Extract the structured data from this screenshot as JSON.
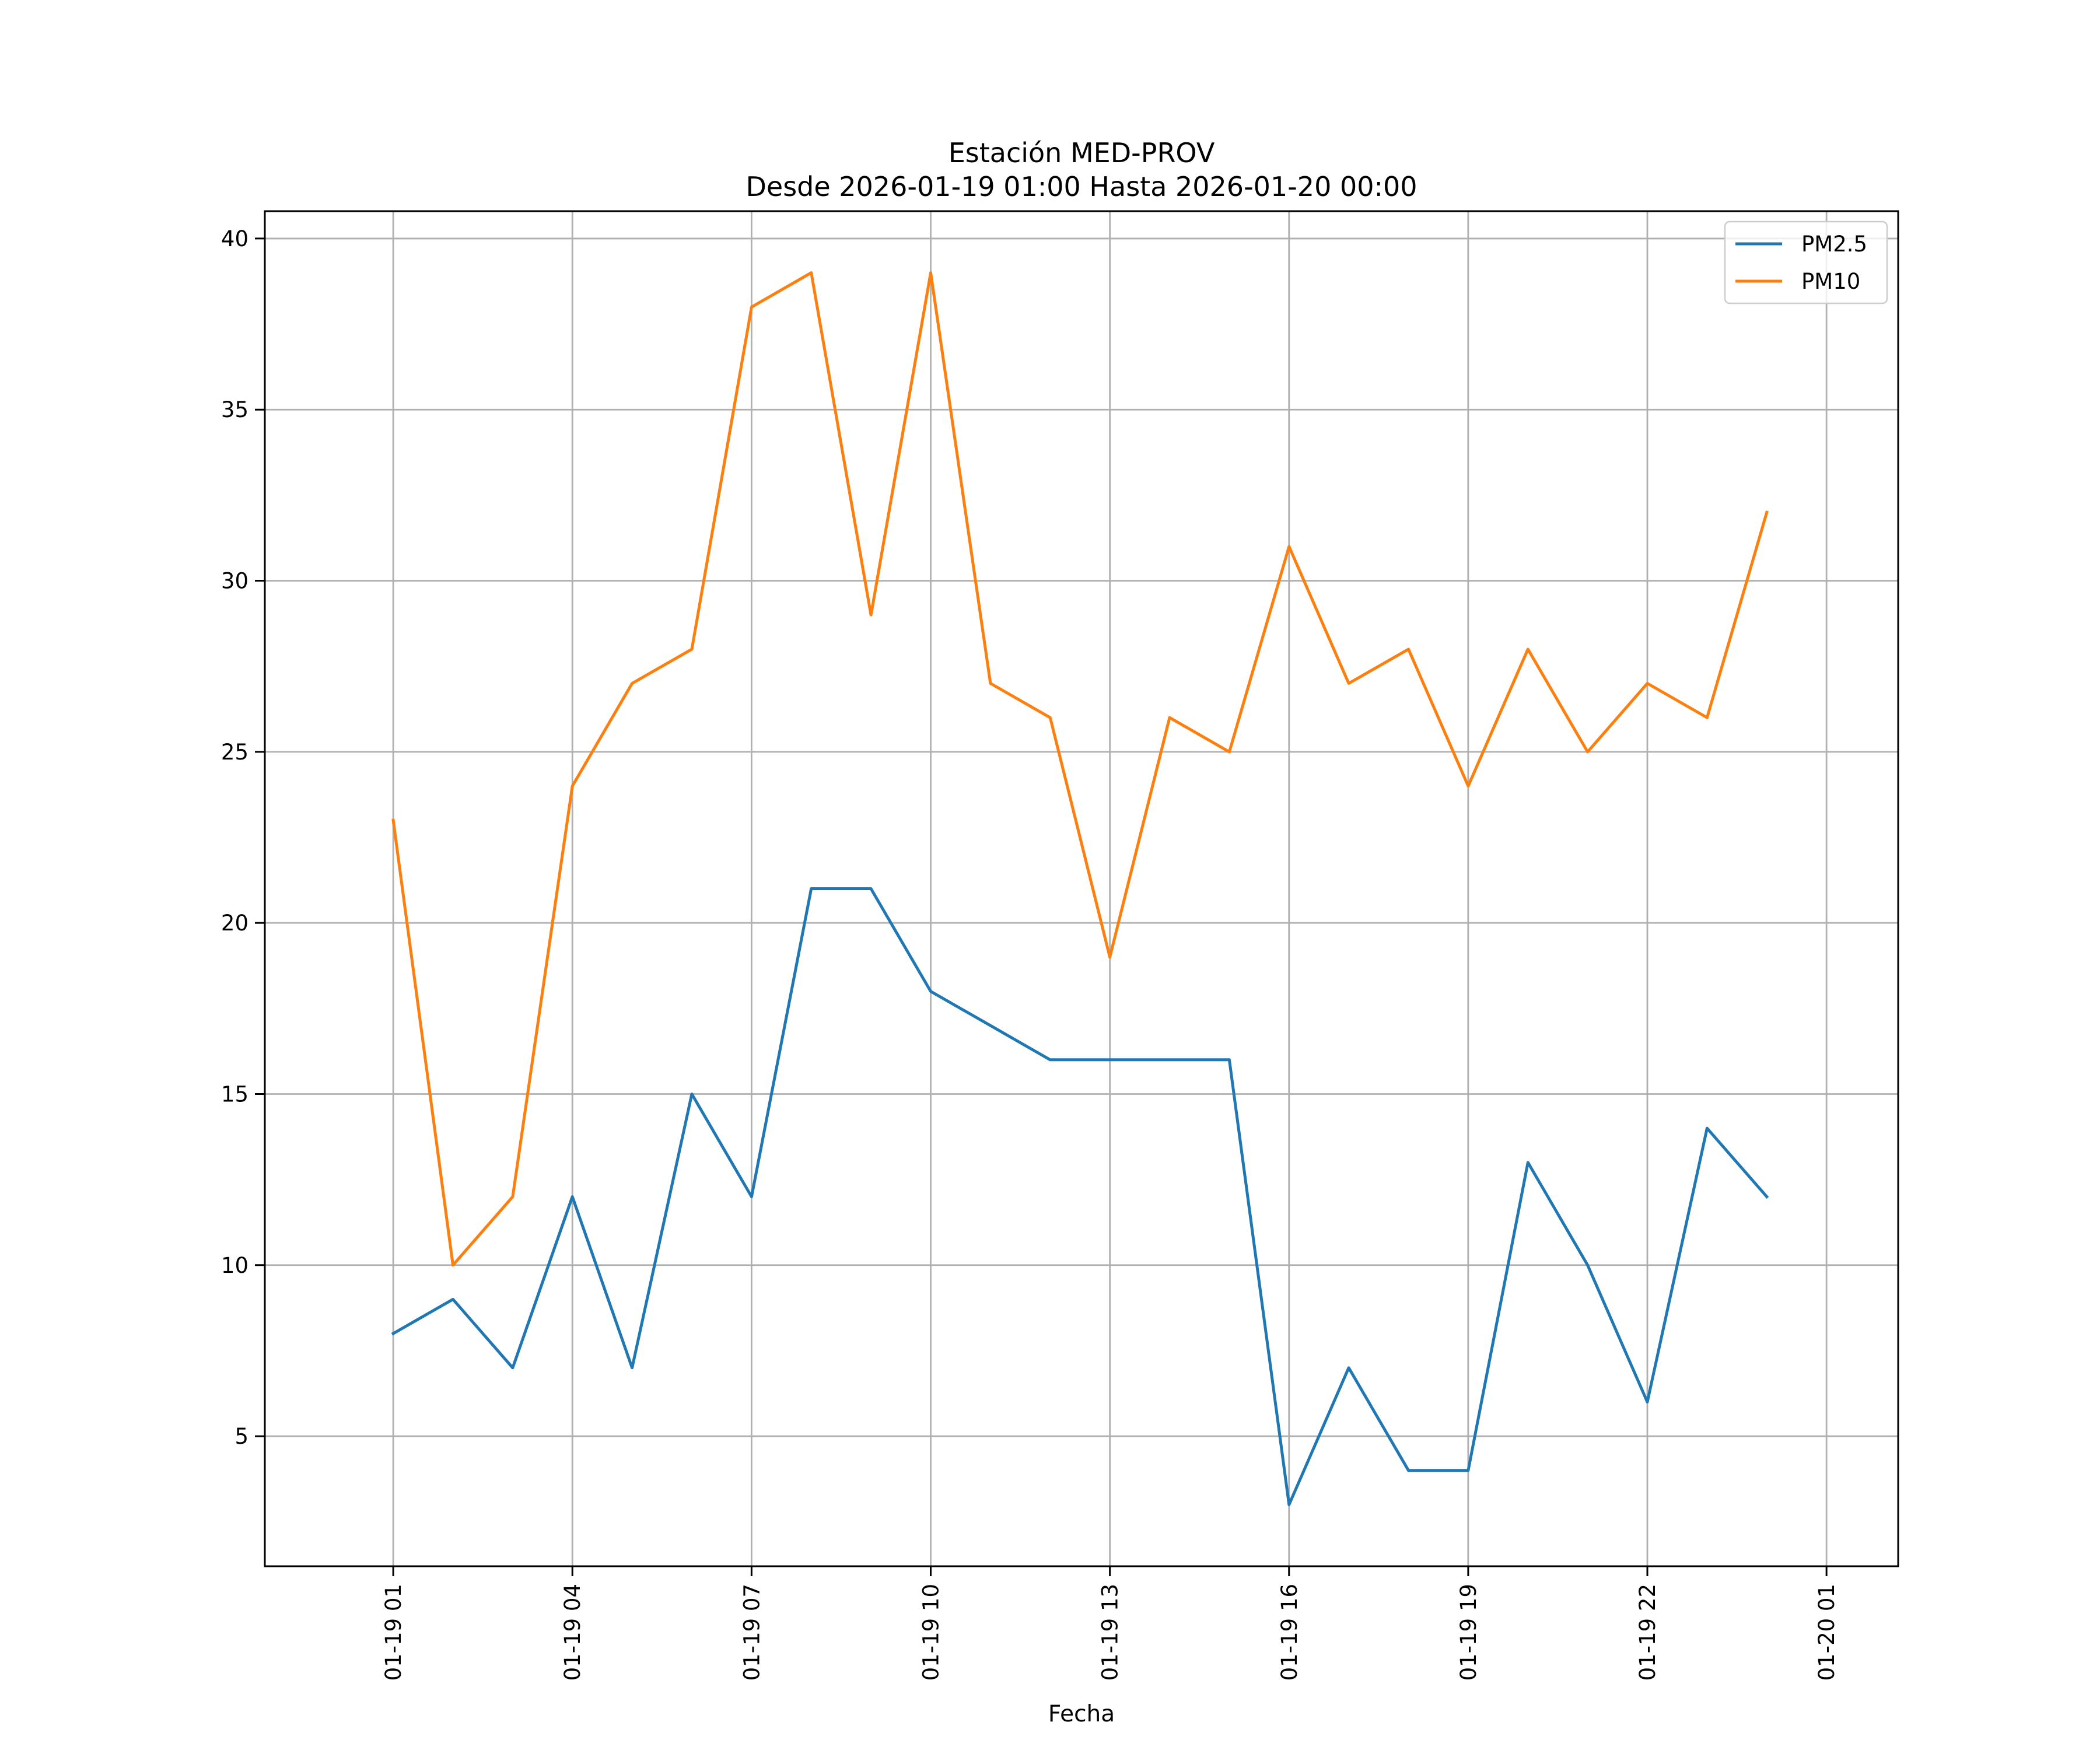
{
  "chart_data": {
    "type": "line",
    "title_line1": "Estación MED-PROV",
    "title_line2": "Desde 2026-01-19 01:00 Hasta 2026-01-20 00:00",
    "xlabel": "Fecha",
    "ylabel": "",
    "x": [
      "2026-01-19 01:00",
      "2026-01-19 02:00",
      "2026-01-19 03:00",
      "2026-01-19 04:00",
      "2026-01-19 05:00",
      "2026-01-19 06:00",
      "2026-01-19 07:00",
      "2026-01-19 08:00",
      "2026-01-19 09:00",
      "2026-01-19 10:00",
      "2026-01-19 11:00",
      "2026-01-19 12:00",
      "2026-01-19 13:00",
      "2026-01-19 14:00",
      "2026-01-19 15:00",
      "2026-01-19 16:00",
      "2026-01-19 17:00",
      "2026-01-19 18:00",
      "2026-01-19 19:00",
      "2026-01-19 20:00",
      "2026-01-19 21:00",
      "2026-01-19 22:00",
      "2026-01-19 23:00",
      "2026-01-20 00:00"
    ],
    "series": [
      {
        "name": "PM2.5",
        "color": "#1f77b4",
        "values": [
          8,
          9,
          7,
          12,
          7,
          15,
          12,
          21,
          21,
          18,
          17,
          16,
          16,
          16,
          16,
          3,
          7,
          4,
          4,
          13,
          10,
          6,
          14,
          12
        ]
      },
      {
        "name": "PM10",
        "color": "#ff7f0e",
        "values": [
          23,
          10,
          12,
          24,
          27,
          28,
          38,
          39,
          29,
          39,
          27,
          26,
          19,
          26,
          25,
          31,
          27,
          28,
          24,
          28,
          25,
          27,
          26,
          32
        ]
      }
    ],
    "xticks": [
      "2026-01-19 01:00",
      "2026-01-19 04:00",
      "2026-01-19 07:00",
      "2026-01-19 10:00",
      "2026-01-19 13:00",
      "2026-01-19 16:00",
      "2026-01-19 19:00",
      "2026-01-19 22:00",
      "2026-01-20 01:00"
    ],
    "xtick_labels": [
      "01-19 01",
      "01-19 04",
      "01-19 07",
      "01-19 10",
      "01-19 13",
      "01-19 16",
      "01-19 19",
      "01-19 22",
      "01-20 01"
    ],
    "xlim": [
      "2026-01-18 22:51",
      "2026-01-20 02:12"
    ],
    "yticks": [
      5,
      10,
      15,
      20,
      25,
      30,
      35,
      40
    ],
    "ytick_labels": [
      "5",
      "10",
      "15",
      "20",
      "25",
      "30",
      "35",
      "40"
    ],
    "ylim": [
      1.2,
      40.8
    ],
    "grid": true,
    "legend_position": "top-right"
  }
}
